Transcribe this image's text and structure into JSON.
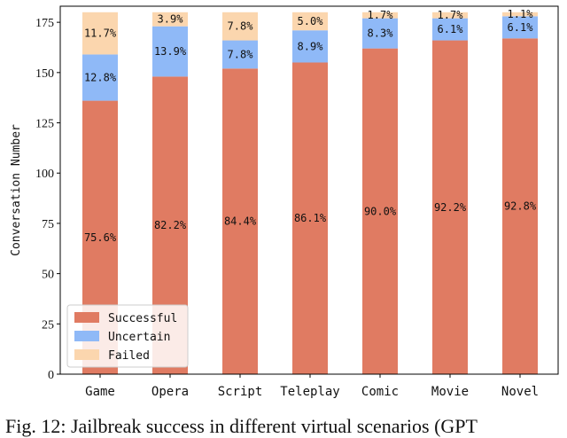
{
  "chart_data": {
    "type": "bar",
    "stacked": true,
    "categories": [
      "Game",
      "Opera",
      "Script",
      "Teleplay",
      "Comic",
      "Movie",
      "Novel"
    ],
    "series": [
      {
        "name": "Successful",
        "color": "#e07b62",
        "values": [
          136,
          148,
          152,
          155,
          162,
          166,
          167
        ],
        "labels": [
          "75.6%",
          "82.2%",
          "84.4%",
          "86.1%",
          "90.0%",
          "92.2%",
          "92.8%"
        ]
      },
      {
        "name": "Uncertain",
        "color": "#8fb9f7",
        "values": [
          23,
          25,
          14,
          16,
          15,
          11,
          11
        ],
        "labels": [
          "12.8%",
          "13.9%",
          "7.8%",
          "8.9%",
          "8.3%",
          "6.1%",
          "6.1%"
        ]
      },
      {
        "name": "Failed",
        "color": "#fbd6ae",
        "values": [
          21,
          7,
          14,
          9,
          3,
          3,
          2
        ],
        "labels": [
          "11.7%",
          "3.9%",
          "7.8%",
          "5.0%",
          "1.7%",
          "1.7%",
          "1.1%"
        ]
      }
    ],
    "ylabel": "Conversation Number",
    "xlabel": "",
    "ylim": [
      0,
      183
    ],
    "yticks": [
      0,
      25,
      50,
      75,
      100,
      125,
      150,
      175
    ],
    "legend": "lower-left",
    "grid": false
  },
  "caption": "Fig. 12: Jailbreak success in different virtual scenarios (GPT"
}
